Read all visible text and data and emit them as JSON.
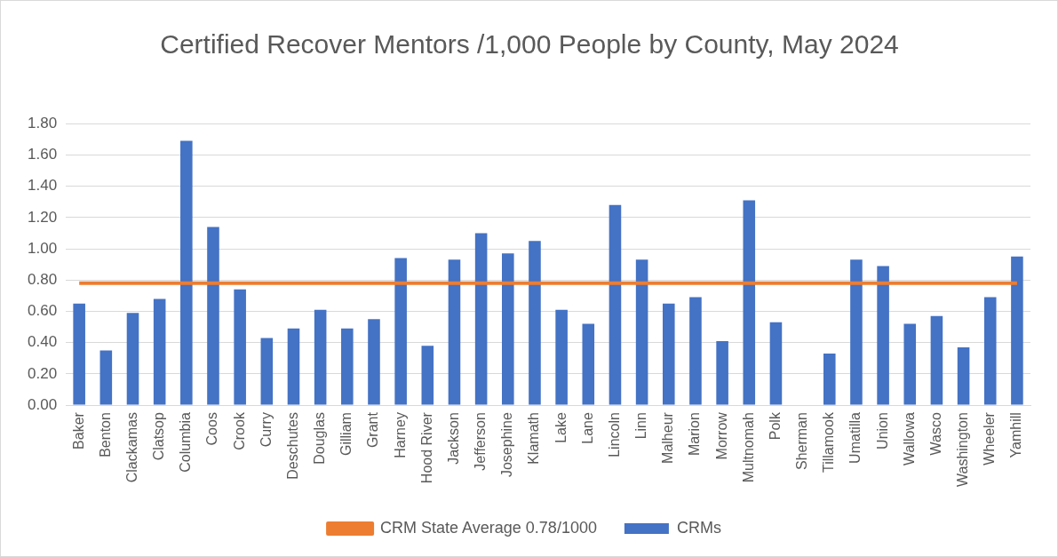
{
  "chart_data": {
    "type": "bar",
    "title": "Certified Recover Mentors /1,000 People by County, May 2024",
    "categories": [
      "Baker",
      "Benton",
      "Clackamas",
      "Clatsop",
      "Columbia",
      "Coos",
      "Crook",
      "Curry",
      "Deschutes",
      "Douglas",
      "Gilliam",
      "Grant",
      "Harney",
      "Hood River",
      "Jackson",
      "Jefferson",
      "Josephine",
      "Klamath",
      "Lake",
      "Lane",
      "Lincoln",
      "Linn",
      "Malheur",
      "Marion",
      "Morrow",
      "Multnomah",
      "Polk",
      "Sherman",
      "Tillamook",
      "Umatilla",
      "Union",
      "Wallowa",
      "Wasco",
      "Washington",
      "Wheeler",
      "Yamhill"
    ],
    "series": [
      {
        "name": "CRMs",
        "color": "#4472c4",
        "values": [
          0.65,
          0.35,
          0.59,
          0.68,
          1.69,
          1.14,
          0.74,
          0.43,
          0.49,
          0.61,
          0.49,
          0.55,
          0.94,
          0.38,
          0.93,
          1.1,
          0.97,
          1.05,
          0.61,
          0.52,
          1.28,
          0.93,
          0.65,
          0.69,
          0.41,
          1.31,
          0.53,
          0,
          0.33,
          0.93,
          0.89,
          0.52,
          0.57,
          0.37,
          0.69,
          0.95
        ]
      },
      {
        "name": "CRM State Average 0.78/1000",
        "type": "line",
        "color": "#ed7d31",
        "values": [
          0.78,
          0.78,
          0.78,
          0.78,
          0.78,
          0.78,
          0.78,
          0.78,
          0.78,
          0.78,
          0.78,
          0.78,
          0.78,
          0.78,
          0.78,
          0.78,
          0.78,
          0.78,
          0.78,
          0.78,
          0.78,
          0.78,
          0.78,
          0.78,
          0.78,
          0.78,
          0.78,
          0.78,
          0.78,
          0.78,
          0.78,
          0.78,
          0.78,
          0.78,
          0.78,
          0.78
        ]
      }
    ],
    "ylim": [
      0,
      1.8
    ],
    "yticks": [
      {
        "value": 0,
        "label": "0.00"
      },
      {
        "value": 0.2,
        "label": "0.20"
      },
      {
        "value": 0.4,
        "label": "0.40"
      },
      {
        "value": 0.6,
        "label": "0.60"
      },
      {
        "value": 0.8,
        "label": "0.80"
      },
      {
        "value": 1.0,
        "label": "1.00"
      },
      {
        "value": 1.2,
        "label": "1.20"
      },
      {
        "value": 1.4,
        "label": "1.40"
      },
      {
        "value": 1.6,
        "label": "1.60"
      },
      {
        "value": 1.8,
        "label": "1.80"
      }
    ],
    "grid": "y",
    "legend": "bottom",
    "marker": "none"
  }
}
